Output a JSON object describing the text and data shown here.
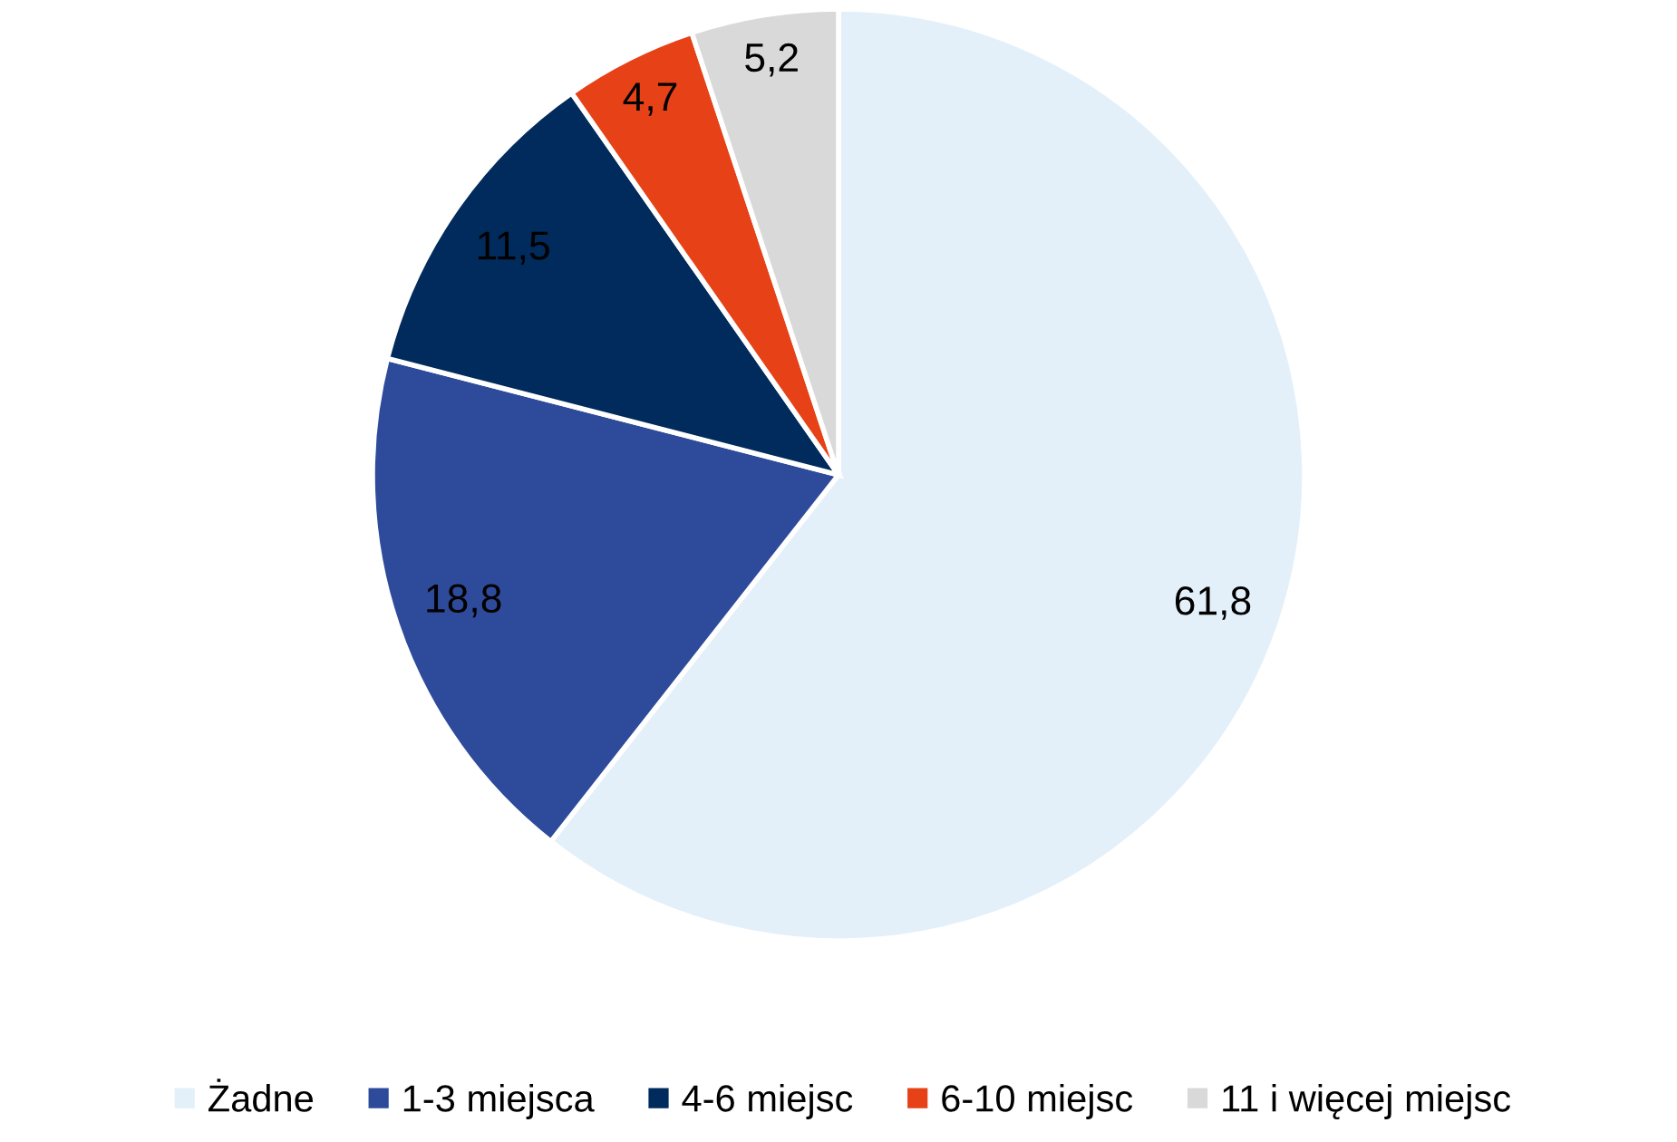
{
  "chart_data": {
    "type": "pie",
    "categories": [
      "Żadne",
      "1-3 miejsca",
      "4-6 miejsc",
      "6-10 miejsc",
      "11 i więcej miejsc"
    ],
    "values": [
      61.8,
      18.8,
      11.5,
      4.7,
      5.2
    ],
    "value_labels": [
      "61,8",
      "18,8",
      "11,5",
      "4,7",
      "5,2"
    ],
    "colors": [
      "#e3f0f9",
      "#2e4a9a",
      "#002b5c",
      "#e64117",
      "#d9d9d9"
    ],
    "legend": "bottom"
  }
}
